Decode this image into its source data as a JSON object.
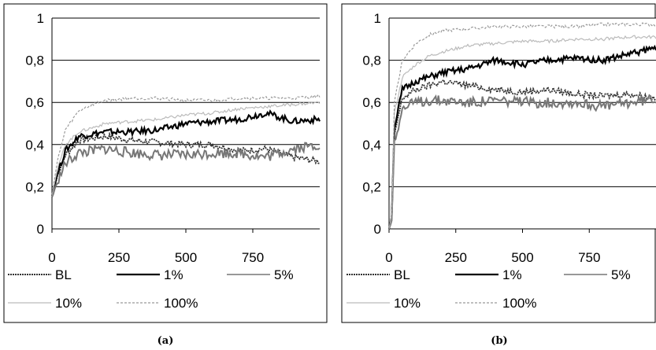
{
  "chart_data": [
    {
      "type": "line",
      "caption": "(a)",
      "ylim": [
        0,
        1
      ],
      "xlim": [
        0,
        1000
      ],
      "yticks": [
        "0",
        "0,2",
        "0,4",
        "0,6",
        "0,8",
        "1"
      ],
      "xticks": [
        "0",
        "250",
        "500",
        "750"
      ],
      "grid": true,
      "legend": "bottom",
      "series": [
        {
          "name": "BL",
          "color": "#333333",
          "x": [
            0,
            20,
            50,
            100,
            150,
            200,
            300,
            400,
            500,
            600,
            700,
            800,
            900,
            1000
          ],
          "y": [
            0.15,
            0.25,
            0.35,
            0.42,
            0.43,
            0.44,
            0.42,
            0.41,
            0.4,
            0.4,
            0.37,
            0.38,
            0.34,
            0.32
          ]
        },
        {
          "name": "1%",
          "color": "#000000",
          "x": [
            0,
            20,
            50,
            100,
            150,
            200,
            300,
            400,
            500,
            600,
            700,
            800,
            900,
            1000
          ],
          "y": [
            0.16,
            0.26,
            0.37,
            0.44,
            0.45,
            0.46,
            0.46,
            0.47,
            0.5,
            0.51,
            0.52,
            0.55,
            0.51,
            0.52
          ]
        },
        {
          "name": "5%",
          "color": "#777777",
          "x": [
            0,
            20,
            50,
            100,
            150,
            200,
            300,
            400,
            500,
            600,
            700,
            800,
            900,
            1000
          ],
          "y": [
            0.15,
            0.22,
            0.31,
            0.36,
            0.37,
            0.38,
            0.36,
            0.35,
            0.35,
            0.36,
            0.36,
            0.34,
            0.38,
            0.4
          ]
        },
        {
          "name": "10%",
          "color": "#bbbbbb",
          "x": [
            0,
            20,
            50,
            100,
            150,
            200,
            300,
            400,
            500,
            600,
            700,
            800,
            900,
            1000
          ],
          "y": [
            0.16,
            0.28,
            0.4,
            0.46,
            0.48,
            0.5,
            0.51,
            0.52,
            0.54,
            0.55,
            0.57,
            0.58,
            0.59,
            0.6
          ]
        },
        {
          "name": "100%",
          "color": "#999999",
          "x": [
            0,
            20,
            50,
            100,
            150,
            200,
            300,
            400,
            500,
            600,
            700,
            800,
            900,
            1000
          ],
          "y": [
            0.16,
            0.32,
            0.47,
            0.56,
            0.59,
            0.61,
            0.62,
            0.62,
            0.61,
            0.61,
            0.62,
            0.62,
            0.62,
            0.63
          ]
        }
      ]
    },
    {
      "type": "line",
      "caption": "(b)",
      "ylim": [
        0,
        1
      ],
      "xlim": [
        0,
        1000
      ],
      "yticks": [
        "0",
        "0,2",
        "0,4",
        "0,6",
        "0,8",
        "1"
      ],
      "xticks": [
        "0",
        "250",
        "500",
        "750"
      ],
      "grid": true,
      "legend": "bottom",
      "series": [
        {
          "name": "BL",
          "color": "#333333",
          "x": [
            0,
            10,
            20,
            50,
            100,
            150,
            200,
            300,
            400,
            500,
            600,
            700,
            800,
            900,
            1000
          ],
          "y": [
            0,
            0.05,
            0.45,
            0.62,
            0.66,
            0.68,
            0.7,
            0.68,
            0.66,
            0.65,
            0.66,
            0.64,
            0.63,
            0.64,
            0.62
          ]
        },
        {
          "name": "1%",
          "color": "#000000",
          "x": [
            0,
            10,
            20,
            50,
            100,
            150,
            200,
            300,
            400,
            500,
            600,
            700,
            800,
            900,
            1000
          ],
          "y": [
            0,
            0.06,
            0.48,
            0.66,
            0.7,
            0.72,
            0.74,
            0.76,
            0.8,
            0.78,
            0.8,
            0.81,
            0.8,
            0.83,
            0.86
          ]
        },
        {
          "name": "5%",
          "color": "#777777",
          "x": [
            0,
            10,
            20,
            50,
            100,
            150,
            200,
            300,
            400,
            500,
            600,
            700,
            800,
            900,
            1000
          ],
          "y": [
            0,
            0.04,
            0.42,
            0.57,
            0.6,
            0.61,
            0.61,
            0.6,
            0.61,
            0.6,
            0.6,
            0.6,
            0.58,
            0.6,
            0.62
          ]
        },
        {
          "name": "10%",
          "color": "#bbbbbb",
          "x": [
            0,
            10,
            20,
            50,
            100,
            150,
            200,
            300,
            400,
            500,
            600,
            700,
            800,
            900,
            1000
          ],
          "y": [
            0,
            0.07,
            0.55,
            0.72,
            0.78,
            0.82,
            0.84,
            0.87,
            0.88,
            0.89,
            0.89,
            0.9,
            0.9,
            0.91,
            0.91
          ]
        },
        {
          "name": "100%",
          "color": "#999999",
          "x": [
            0,
            10,
            20,
            50,
            100,
            150,
            200,
            300,
            400,
            500,
            600,
            700,
            800,
            900,
            1000
          ],
          "y": [
            0,
            0.08,
            0.6,
            0.8,
            0.88,
            0.92,
            0.94,
            0.95,
            0.96,
            0.96,
            0.96,
            0.96,
            0.97,
            0.97,
            0.97
          ]
        }
      ]
    }
  ]
}
